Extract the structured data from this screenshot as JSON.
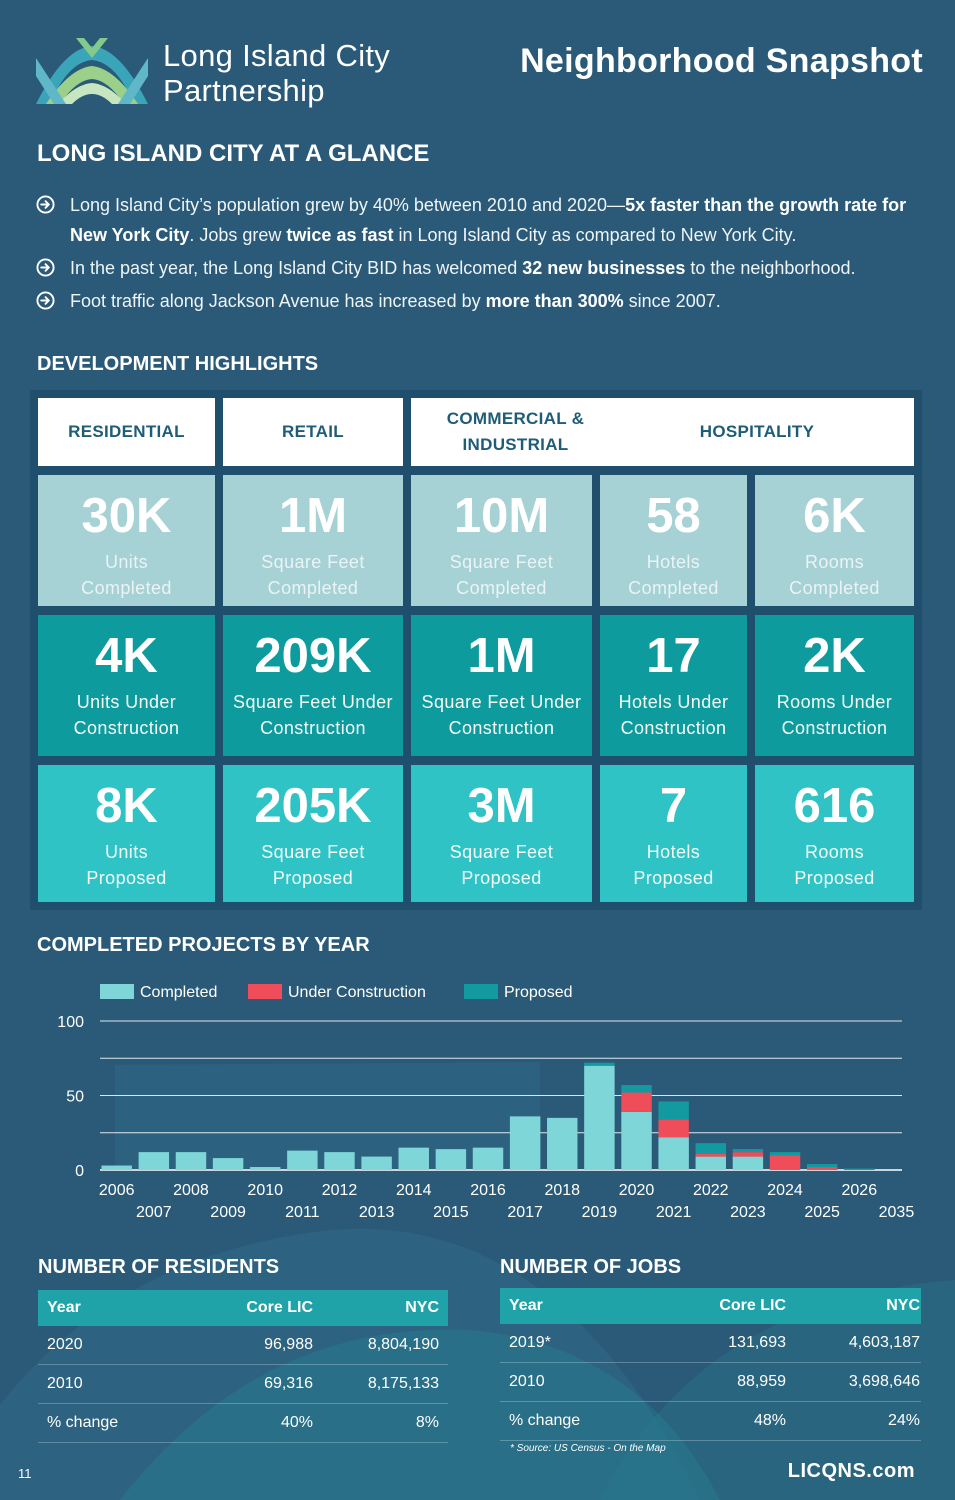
{
  "header": {
    "brand_line1": "Long Island City",
    "brand_line2": "Partnership",
    "snapshot_title": "Neighborhood Snapshot"
  },
  "glance": {
    "title": "LONG ISLAND CITY AT A GLANCE",
    "bullets": [
      [
        {
          "t": "Long Island City’s population grew by 40% between 2010 and 2020—",
          "b": false
        },
        {
          "t": "5x faster than the growth rate for New York City",
          "b": true
        },
        {
          "t": ". Jobs grew ",
          "b": false
        },
        {
          "t": "twice as fast",
          "b": true
        },
        {
          "t": " in Long Island City as compared to New York City.",
          "b": false
        }
      ],
      [
        {
          "t": "In the past year, the Long Island City BID has welcomed ",
          "b": false
        },
        {
          "t": "32 new businesses",
          "b": true
        },
        {
          "t": " to the neighborhood.",
          "b": false
        }
      ],
      [
        {
          "t": "Foot traffic along Jackson Avenue has increased by ",
          "b": false
        },
        {
          "t": "more than 300%",
          "b": true
        },
        {
          "t": " since 2007.",
          "b": false
        }
      ]
    ]
  },
  "development": {
    "title": "DEVELOPMENT HIGHLIGHTS",
    "headers": [
      "RESIDENTIAL",
      "RETAIL",
      "COMMERCIAL & INDUSTRIAL",
      "HOSPITALITY"
    ],
    "rows": [
      [
        {
          "num": "30K",
          "label": "Units\nCompleted"
        },
        {
          "num": "1M",
          "label": "Square Feet\nCompleted"
        },
        {
          "num": "10M",
          "label": "Square Feet\nCompleted"
        },
        {
          "num": "58",
          "label": "Hotels\nCompleted"
        },
        {
          "num": "6K",
          "label": "Rooms\nCompleted"
        }
      ],
      [
        {
          "num": "4K",
          "label": "Units Under\nConstruction"
        },
        {
          "num": "209K",
          "label": "Square Feet Under\nConstruction"
        },
        {
          "num": "1M",
          "label": "Square Feet Under\nConstruction"
        },
        {
          "num": "17",
          "label": "Hotels Under\nConstruction"
        },
        {
          "num": "2K",
          "label": "Rooms Under\nConstruction"
        }
      ],
      [
        {
          "num": "8K",
          "label": "Units\nProposed"
        },
        {
          "num": "205K",
          "label": "Square Feet\nProposed"
        },
        {
          "num": "3M",
          "label": "Square Feet\nProposed"
        },
        {
          "num": "7",
          "label": "Hotels\nProposed"
        },
        {
          "num": "616",
          "label": "Rooms\nProposed"
        }
      ]
    ]
  },
  "chart_title": "COMPLETED PROJECTS BY YEAR",
  "chart_data": {
    "type": "bar",
    "stacked": true,
    "categories": [
      "2006",
      "2007",
      "2008",
      "2009",
      "2010",
      "2011",
      "2012",
      "2013",
      "2014",
      "2015",
      "2016",
      "2017",
      "2018",
      "2019",
      "2020",
      "2021",
      "2022",
      "2023",
      "2024",
      "2025",
      "2026",
      "2035"
    ],
    "series": [
      {
        "name": "Completed",
        "color": "#7fd6d8",
        "values": [
          3,
          12,
          12,
          8,
          2,
          13,
          12,
          9,
          15,
          14,
          15,
          36,
          35,
          70,
          39,
          22,
          9,
          9,
          0,
          0,
          0,
          0
        ]
      },
      {
        "name": "Under Construction",
        "color": "#ef4d5a",
        "values": [
          0,
          0,
          0,
          0,
          0,
          0,
          0,
          0,
          0,
          0,
          0,
          0,
          0,
          0,
          13,
          12,
          2,
          3,
          10,
          2,
          0,
          0
        ]
      },
      {
        "name": "Proposed",
        "color": "#139aa0",
        "values": [
          0,
          0,
          0,
          0,
          0,
          0,
          0,
          0,
          0,
          0,
          0,
          0,
          0,
          2,
          5,
          12,
          7,
          2,
          2,
          2,
          1,
          0
        ]
      }
    ],
    "yticks": [
      0,
      50,
      100
    ],
    "ylim": [
      0,
      100
    ],
    "grid": true,
    "legend": "top-left",
    "xlabel": "",
    "ylabel": ""
  },
  "residents": {
    "title": "NUMBER OF RESIDENTS",
    "headers": [
      "Year",
      "Core LIC",
      "NYC"
    ],
    "rows": [
      [
        "2020",
        "96,988",
        "8,804,190"
      ],
      [
        "2010",
        "69,316",
        "8,175,133"
      ],
      [
        "% change",
        "40%",
        "8%"
      ]
    ]
  },
  "jobs": {
    "title": "NUMBER OF JOBS",
    "headers": [
      "Year",
      "Core LIC",
      "NYC"
    ],
    "rows": [
      [
        "2019*",
        "131,693",
        "4,603,187"
      ],
      [
        "2010",
        "88,959",
        "3,698,646"
      ],
      [
        "% change",
        "48%",
        "24%"
      ]
    ],
    "source": "* Source: US Census - On the Map"
  },
  "footer": {
    "page_number": "11",
    "website": "LICQNS.com"
  }
}
